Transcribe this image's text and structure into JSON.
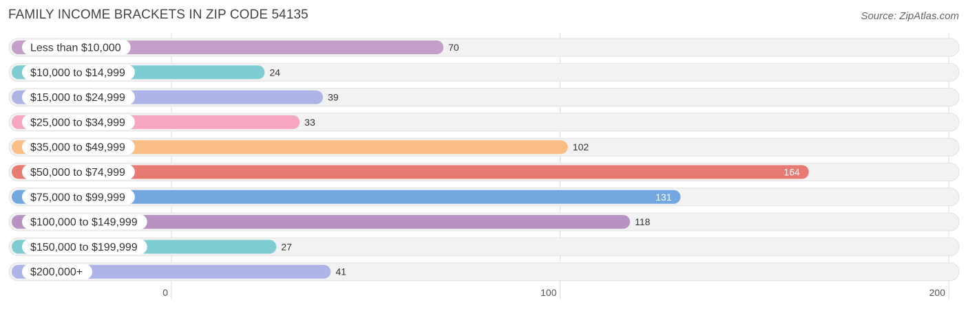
{
  "title": "FAMILY INCOME BRACKETS IN ZIP CODE 54135",
  "source": "Source: ZipAtlas.com",
  "chart_data": {
    "type": "bar",
    "orientation": "horizontal",
    "title": "FAMILY INCOME BRACKETS IN ZIP CODE 54135",
    "xlabel": "",
    "ylabel": "",
    "xlim": [
      0,
      200
    ],
    "xticks": [
      0,
      100,
      200
    ],
    "xtick_labels": [
      "0",
      "100",
      "200"
    ],
    "grid": true,
    "categories": [
      "Less than $10,000",
      "$10,000 to $14,999",
      "$15,000 to $24,999",
      "$25,000 to $34,999",
      "$35,000 to $49,999",
      "$50,000 to $74,999",
      "$75,000 to $99,999",
      "$100,000 to $149,999",
      "$150,000 to $199,999",
      "$200,000+"
    ],
    "values": [
      70,
      24,
      39,
      33,
      102,
      164,
      131,
      118,
      27,
      41
    ],
    "value_labels": [
      "70",
      "24",
      "39",
      "33",
      "102",
      "164",
      "131",
      "118",
      "27",
      "41"
    ],
    "colors": [
      "#c59fca",
      "#7ecdd2",
      "#aeb4e8",
      "#f6a6c1",
      "#fbbf85",
      "#e87a74",
      "#72a7e0",
      "#b892c3",
      "#7ecdd2",
      "#aeb4e8"
    ]
  }
}
